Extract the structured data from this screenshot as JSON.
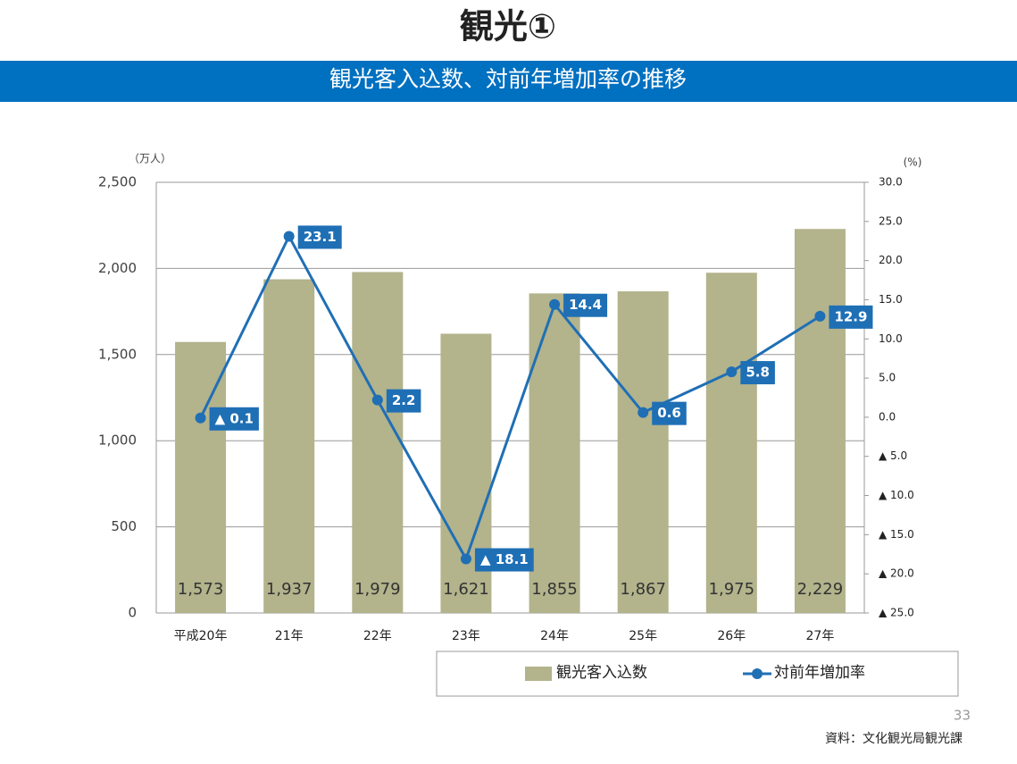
{
  "chart_data": {
    "type": "bar-line",
    "title": "観光①",
    "subtitle": "観光客入込数、対前年増加率の推移",
    "y_axis_label": "（万人）",
    "y2_axis_label": "(%)",
    "page_number": "33",
    "source": "資料：文化観光局観光課",
    "categories": [
      "平成20年",
      "21年",
      "22年",
      "23年",
      "24年",
      "25年",
      "26年",
      "27年"
    ],
    "series": [
      {
        "name": "観光客入込数",
        "type": "bar",
        "color": "#b3b38c",
        "values": [
          1573,
          1937,
          1979,
          1621,
          1855,
          1867,
          1975,
          2229
        ],
        "value_labels": [
          "1,573",
          "1,937",
          "1,979",
          "1,621",
          "1,855",
          "1,867",
          "1,975",
          "2,229"
        ]
      },
      {
        "name": "対前年増加率",
        "type": "line",
        "axis": "y2",
        "color": "#1f6fb5",
        "values": [
          -0.1,
          23.1,
          2.2,
          -18.1,
          14.4,
          0.6,
          5.8,
          12.9
        ],
        "value_labels": [
          "▲ 0.1",
          "23.1",
          "2.2",
          "▲ 18.1",
          "14.4",
          "0.6",
          "5.8",
          "12.9"
        ]
      }
    ],
    "ylim": [
      0,
      2500
    ],
    "yticks": [
      0,
      500,
      {
        "value": 1000,
        "label": "1,000"
      },
      {
        "value": 1500,
        "label": "1,500"
      },
      {
        "value": 2000,
        "label": "2,000"
      },
      {
        "value": 2500,
        "label": "2,500"
      }
    ],
    "y2lim": [
      -25,
      30
    ],
    "y2ticks": [
      {
        "value": -25,
        "label": "▲ 25.0"
      },
      {
        "value": -20,
        "label": "▲ 20.0"
      },
      {
        "value": -15,
        "label": "▲ 15.0"
      },
      {
        "value": -10,
        "label": "▲ 10.0"
      },
      {
        "value": -5,
        "label": "▲ 5.0"
      },
      {
        "value": 0,
        "label": "0.0"
      },
      {
        "value": 5,
        "label": "5.0"
      },
      {
        "value": 10,
        "label": "10.0"
      },
      {
        "value": 15,
        "label": "15.0"
      },
      {
        "value": 20,
        "label": "20.0"
      },
      {
        "value": 25,
        "label": "25.0"
      },
      {
        "value": 30,
        "label": "30.0"
      }
    ],
    "grid": true,
    "legend": "bottom"
  }
}
